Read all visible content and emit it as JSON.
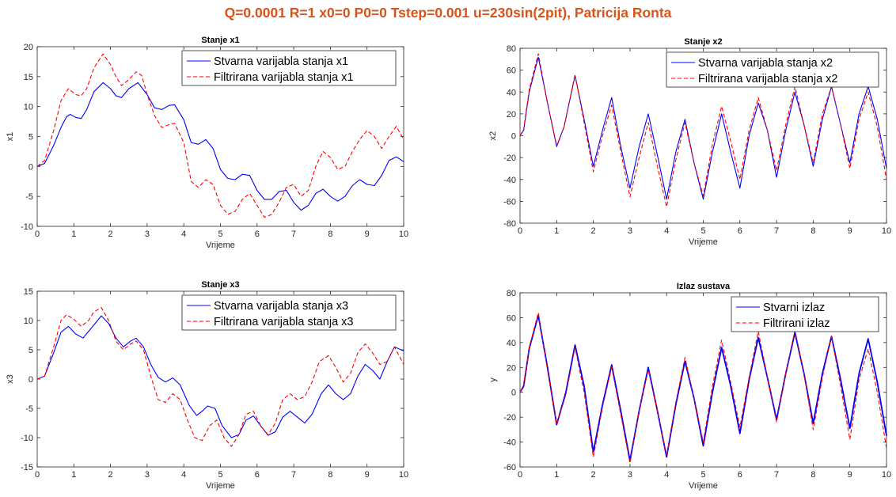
{
  "figure_title": "Q=0.0001 R=1 x0=0 P0=0 Tstep=0.001 u=230sin(2pit), Patricija Ronta",
  "colors": {
    "title": "#D95319",
    "true_series": "#0000FF",
    "filtered_series": "#FF0000"
  },
  "chart_data": [
    {
      "type": "line",
      "title": "Stanje x1",
      "xlabel": "Vrijeme",
      "ylabel": "x1",
      "xlim": [
        0,
        10
      ],
      "ylim": [
        -10,
        20
      ],
      "xticks": [
        "0",
        "1",
        "2",
        "3",
        "4",
        "5",
        "6",
        "7",
        "8",
        "9",
        "10"
      ],
      "yticks": [
        "-10",
        "-5",
        "0",
        "5",
        "10",
        "15",
        "20"
      ],
      "legend_position": "top-right",
      "series": [
        {
          "name": "Stvarna varijabla stanja x1",
          "style": "solid",
          "x": [
            0,
            0.2,
            0.45,
            0.65,
            0.8,
            0.9,
            1.05,
            1.2,
            1.35,
            1.55,
            1.8,
            2.0,
            2.15,
            2.3,
            2.5,
            2.75,
            3.0,
            3.2,
            3.4,
            3.6,
            3.75,
            4.0,
            4.2,
            4.4,
            4.6,
            4.8,
            5.0,
            5.2,
            5.4,
            5.6,
            5.8,
            6.0,
            6.2,
            6.4,
            6.6,
            6.8,
            7.0,
            7.2,
            7.4,
            7.6,
            7.8,
            8.0,
            8.2,
            8.4,
            8.6,
            8.8,
            9.0,
            9.2,
            9.4,
            9.6,
            9.8,
            10.0
          ],
          "y": [
            0,
            0.5,
            3.5,
            6.5,
            8.3,
            8.7,
            8.2,
            8.0,
            9.5,
            12.5,
            14.0,
            13.0,
            11.8,
            11.5,
            13.0,
            14.0,
            12.0,
            9.8,
            9.5,
            10.2,
            10.3,
            7.8,
            4.0,
            3.7,
            4.5,
            3.0,
            -0.5,
            -2.0,
            -2.2,
            -1.3,
            -1.5,
            -4.0,
            -5.5,
            -5.5,
            -4.2,
            -4.0,
            -6.0,
            -7.3,
            -6.5,
            -4.5,
            -3.8,
            -5.0,
            -5.8,
            -5.0,
            -3.2,
            -2.2,
            -3.0,
            -3.2,
            -1.5,
            1.0,
            1.6,
            0.8
          ]
        },
        {
          "name": "Filtrirana varijabla stanja x1",
          "style": "dashed",
          "x": [
            0,
            0.2,
            0.45,
            0.65,
            0.85,
            1.05,
            1.2,
            1.35,
            1.55,
            1.8,
            2.0,
            2.15,
            2.3,
            2.5,
            2.7,
            2.85,
            3.0,
            3.2,
            3.4,
            3.6,
            3.75,
            4.0,
            4.2,
            4.4,
            4.6,
            4.8,
            5.0,
            5.2,
            5.4,
            5.6,
            5.8,
            6.0,
            6.2,
            6.4,
            6.6,
            6.8,
            7.0,
            7.2,
            7.4,
            7.6,
            7.8,
            8.0,
            8.2,
            8.4,
            8.6,
            8.8,
            9.0,
            9.2,
            9.4,
            9.6,
            9.8,
            10.0
          ],
          "y": [
            0,
            1.0,
            6.0,
            11.0,
            13.0,
            12.0,
            11.8,
            13.0,
            16.5,
            18.8,
            17.0,
            15.0,
            13.5,
            14.5,
            15.8,
            15.2,
            12.0,
            8.5,
            6.5,
            7.0,
            7.2,
            4.0,
            -2.5,
            -3.5,
            -2.2,
            -3.0,
            -6.5,
            -8.0,
            -7.5,
            -5.5,
            -4.5,
            -6.5,
            -8.5,
            -8.0,
            -6.0,
            -3.5,
            -3.0,
            -5.0,
            -4.0,
            0.0,
            2.5,
            1.5,
            -0.5,
            0.0,
            2.5,
            4.5,
            6.0,
            5.0,
            3.0,
            5.0,
            6.7,
            4.5
          ]
        }
      ]
    },
    {
      "type": "line",
      "title": "Stanje x2",
      "xlabel": "Vrijeme",
      "ylabel": "x2",
      "xlim": [
        0,
        10
      ],
      "ylim": [
        -80,
        80
      ],
      "xticks": [
        "0",
        "1",
        "2",
        "3",
        "4",
        "5",
        "6",
        "7",
        "8",
        "9",
        "10"
      ],
      "yticks": [
        "-80",
        "-60",
        "-40",
        "-20",
        "0",
        "20",
        "40",
        "60",
        "80"
      ],
      "legend_position": "top-right",
      "series": [
        {
          "name": "Stvarna varijabla stanja x2",
          "style": "solid",
          "x": [
            0,
            0.1,
            0.25,
            0.5,
            0.75,
            1.0,
            1.2,
            1.5,
            1.75,
            2.0,
            2.25,
            2.5,
            2.75,
            3.0,
            3.25,
            3.5,
            3.75,
            4.0,
            4.25,
            4.5,
            4.75,
            5.0,
            5.25,
            5.5,
            5.75,
            6.0,
            6.25,
            6.5,
            6.75,
            7.0,
            7.25,
            7.5,
            7.75,
            8.0,
            8.25,
            8.5,
            8.75,
            9.0,
            9.25,
            9.5,
            9.75,
            10.0
          ],
          "y": [
            0,
            5,
            40,
            72,
            30,
            -10,
            8,
            55,
            15,
            -28,
            5,
            35,
            -10,
            -48,
            -10,
            20,
            -18,
            -58,
            -15,
            15,
            -25,
            -58,
            -15,
            20,
            -15,
            -48,
            0,
            30,
            5,
            -38,
            5,
            40,
            10,
            -28,
            15,
            45,
            10,
            -25,
            20,
            45,
            15,
            -30
          ]
        },
        {
          "name": "Filtrirana varijabla stanja x2",
          "style": "dashed",
          "x": [
            0,
            0.1,
            0.25,
            0.5,
            0.75,
            1.0,
            1.2,
            1.5,
            1.75,
            2.0,
            2.25,
            2.5,
            2.75,
            3.0,
            3.25,
            3.5,
            3.75,
            4.0,
            4.25,
            4.5,
            4.75,
            5.0,
            5.25,
            5.5,
            5.75,
            6.0,
            6.25,
            6.5,
            6.75,
            7.0,
            7.25,
            7.5,
            7.75,
            8.0,
            8.25,
            8.5,
            8.75,
            9.0,
            9.25,
            9.5,
            9.75,
            10.0
          ],
          "y": [
            0,
            6,
            42,
            75,
            30,
            -9,
            8,
            56,
            12,
            -33,
            0,
            28,
            -15,
            -56,
            -20,
            12,
            -28,
            -65,
            -22,
            12,
            -25,
            -55,
            -8,
            27,
            -5,
            -40,
            5,
            35,
            5,
            -32,
            10,
            45,
            10,
            -25,
            20,
            45,
            10,
            -30,
            15,
            40,
            8,
            -40
          ]
        }
      ]
    },
    {
      "type": "line",
      "title": "Stanje x3",
      "xlabel": "Vrijeme",
      "ylabel": "x3",
      "xlim": [
        0,
        10
      ],
      "ylim": [
        -15,
        15
      ],
      "xticks": [
        "0",
        "1",
        "2",
        "3",
        "4",
        "5",
        "6",
        "7",
        "8",
        "9",
        "10"
      ],
      "yticks": [
        "-15",
        "-10",
        "-5",
        "0",
        "5",
        "10",
        "15"
      ],
      "legend_position": "top-right",
      "series": [
        {
          "name": "Stvarna varijabla stanja x3",
          "style": "solid",
          "x": [
            0,
            0.2,
            0.45,
            0.65,
            0.85,
            1.05,
            1.25,
            1.45,
            1.75,
            1.95,
            2.15,
            2.35,
            2.55,
            2.7,
            2.9,
            3.1,
            3.3,
            3.5,
            3.7,
            3.9,
            4.15,
            4.35,
            4.5,
            4.65,
            4.85,
            5.05,
            5.3,
            5.5,
            5.7,
            5.9,
            6.1,
            6.3,
            6.5,
            6.7,
            6.9,
            7.1,
            7.3,
            7.5,
            7.75,
            7.95,
            8.15,
            8.35,
            8.55,
            8.75,
            8.95,
            9.15,
            9.35,
            9.55,
            9.75,
            10.0
          ],
          "y": [
            0,
            0.5,
            4.5,
            8.0,
            9.0,
            7.7,
            7.0,
            8.5,
            10.8,
            9.5,
            7.0,
            5.5,
            6.5,
            7.0,
            5.5,
            2.5,
            0.3,
            -0.5,
            0.2,
            -1.0,
            -4.5,
            -6.2,
            -5.5,
            -4.6,
            -5.0,
            -8.0,
            -10.0,
            -9.5,
            -7.0,
            -6.3,
            -8.0,
            -9.6,
            -9.0,
            -6.5,
            -5.5,
            -6.5,
            -7.5,
            -6.0,
            -2.5,
            -1.0,
            -2.5,
            -3.5,
            -2.5,
            0.5,
            2.5,
            1.5,
            0.0,
            3.0,
            5.5,
            4.8
          ]
        },
        {
          "name": "Filtrirana varijabla stanja x3",
          "style": "dashed",
          "x": [
            0,
            0.2,
            0.45,
            0.65,
            0.8,
            1.0,
            1.2,
            1.4,
            1.55,
            1.75,
            1.95,
            2.15,
            2.35,
            2.55,
            2.7,
            2.9,
            3.1,
            3.3,
            3.5,
            3.7,
            3.9,
            4.1,
            4.3,
            4.5,
            4.7,
            4.9,
            5.1,
            5.3,
            5.5,
            5.7,
            5.9,
            6.1,
            6.3,
            6.5,
            6.7,
            6.9,
            7.1,
            7.3,
            7.5,
            7.7,
            7.95,
            8.15,
            8.35,
            8.55,
            8.75,
            8.95,
            9.15,
            9.35,
            9.55,
            9.75,
            10.0
          ],
          "y": [
            0,
            0.5,
            5.5,
            10.0,
            11.0,
            10.2,
            9.0,
            10.0,
            11.5,
            12.2,
            10.0,
            6.5,
            5.0,
            6.0,
            6.5,
            5.0,
            0.5,
            -3.5,
            -4.0,
            -2.5,
            -3.5,
            -7.0,
            -10.0,
            -10.5,
            -8.0,
            -7.0,
            -10.0,
            -11.5,
            -9.5,
            -6.0,
            -5.5,
            -8.0,
            -9.5,
            -7.5,
            -3.5,
            -2.5,
            -3.5,
            -3.0,
            -0.5,
            3.0,
            4.0,
            2.0,
            -0.5,
            1.0,
            4.5,
            6.0,
            4.5,
            2.5,
            3.0,
            5.5,
            2.5
          ]
        }
      ]
    },
    {
      "type": "line",
      "title": "Izlaz sustava",
      "xlabel": "Vrijeme",
      "ylabel": "y",
      "xlim": [
        0,
        10
      ],
      "ylim": [
        -60,
        80
      ],
      "xticks": [
        "0",
        "1",
        "2",
        "3",
        "4",
        "5",
        "6",
        "7",
        "8",
        "9",
        "10"
      ],
      "yticks": [
        "-60",
        "-40",
        "-20",
        "0",
        "20",
        "40",
        "60",
        "80"
      ],
      "legend_position": "top-right",
      "series": [
        {
          "name": "Stvarni izlaz",
          "style": "solid",
          "x": [
            0,
            0.1,
            0.25,
            0.5,
            0.75,
            1.0,
            1.25,
            1.5,
            1.75,
            2.0,
            2.25,
            2.5,
            2.75,
            3.0,
            3.25,
            3.5,
            3.75,
            4.0,
            4.25,
            4.5,
            4.75,
            5.0,
            5.25,
            5.5,
            5.75,
            6.0,
            6.25,
            6.5,
            6.75,
            7.0,
            7.25,
            7.5,
            7.75,
            8.0,
            8.25,
            8.5,
            8.75,
            9.0,
            9.25,
            9.5,
            9.75,
            10.0
          ],
          "y": [
            0,
            5,
            35,
            62,
            20,
            -26,
            0,
            38,
            5,
            -48,
            -10,
            22,
            -15,
            -55,
            -15,
            20,
            -15,
            -52,
            -10,
            25,
            -5,
            -43,
            0,
            36,
            5,
            -33,
            10,
            44,
            12,
            -22,
            15,
            48,
            15,
            -25,
            15,
            45,
            10,
            -29,
            15,
            43,
            8,
            -35
          ]
        },
        {
          "name": "Filtrirani izlaz",
          "style": "dashed",
          "x": [
            0,
            0.1,
            0.25,
            0.5,
            0.75,
            1.0,
            1.25,
            1.5,
            1.75,
            2.0,
            2.25,
            2.5,
            2.75,
            3.0,
            3.25,
            3.5,
            3.75,
            4.0,
            4.25,
            4.5,
            4.75,
            5.0,
            5.25,
            5.5,
            5.75,
            6.0,
            6.25,
            6.5,
            6.75,
            7.0,
            7.25,
            7.5,
            7.75,
            8.0,
            8.25,
            8.5,
            8.75,
            9.0,
            9.25,
            9.5,
            9.75,
            10.0
          ],
          "y": [
            0,
            6,
            36,
            64,
            18,
            -26,
            -2,
            36,
            0,
            -52,
            -12,
            20,
            -18,
            -57,
            -15,
            18,
            -15,
            -51,
            -8,
            28,
            -5,
            -40,
            5,
            42,
            8,
            -28,
            12,
            49,
            12,
            -24,
            15,
            50,
            15,
            -30,
            12,
            45,
            5,
            -38,
            10,
            35,
            0,
            -45
          ]
        }
      ]
    }
  ]
}
